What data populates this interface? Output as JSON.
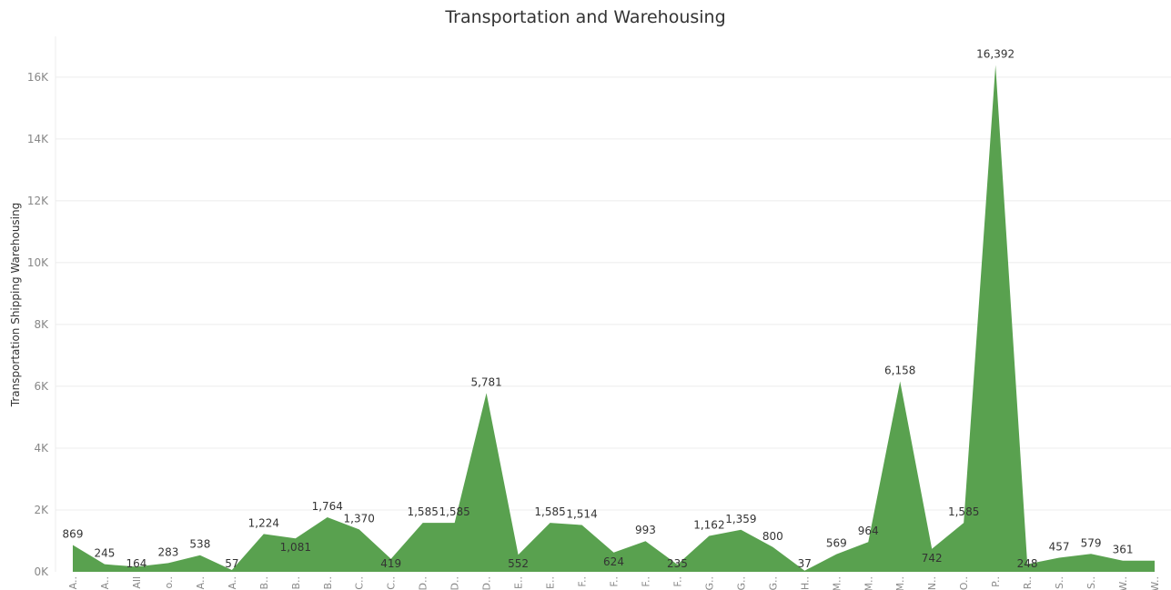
{
  "chart_data": {
    "type": "area",
    "title": "Transportation and Warehousing",
    "xlabel": "",
    "ylabel": "Transportation Shipping Warehousing",
    "ylim": [
      0,
      17200
    ],
    "yticks": [
      0,
      2000,
      4000,
      6000,
      8000,
      10000,
      12000,
      14000,
      16000
    ],
    "ytick_labels": [
      "0K",
      "2K",
      "4K",
      "6K",
      "8K",
      "10K",
      "12K",
      "14K",
      "16K"
    ],
    "grid": true,
    "color": "#59a14f",
    "categories": [
      "A..",
      "A..",
      "All",
      "o..",
      "A..",
      "A..",
      "B..",
      "B..",
      "B..",
      "C..",
      "C..",
      "D..",
      "D..",
      "D..",
      "E..",
      "E..",
      "F..",
      "F..",
      "F..",
      "F..",
      "G..",
      "G..",
      "G..",
      "H..",
      "M..",
      "M..",
      "M..",
      "N..",
      "O..",
      "P..",
      "R..",
      "S..",
      "S..",
      "W..",
      "W.."
    ],
    "values": [
      869,
      245,
      164,
      283,
      538,
      57,
      1224,
      1081,
      1764,
      1370,
      419,
      1585,
      1585,
      5781,
      552,
      1585,
      1514,
      624,
      993,
      235,
      1162,
      1359,
      800,
      37,
      569,
      964,
      6158,
      742,
      1585,
      16392,
      248,
      457,
      579,
      361,
      361
    ],
    "data_labels": [
      "869",
      "245",
      "164",
      "283",
      "538",
      "57",
      "1,224",
      "1,081",
      "1,764",
      "1,370",
      "419",
      "1,585",
      "1,585",
      "5,781",
      "552",
      "1,585",
      "1,514",
      "624",
      "993",
      "235",
      "1,162",
      "1,359",
      "800",
      "37",
      "569",
      "964",
      "6,158",
      "742",
      "1,585",
      "16,392",
      "248",
      "457",
      "579",
      "361",
      ""
    ]
  }
}
